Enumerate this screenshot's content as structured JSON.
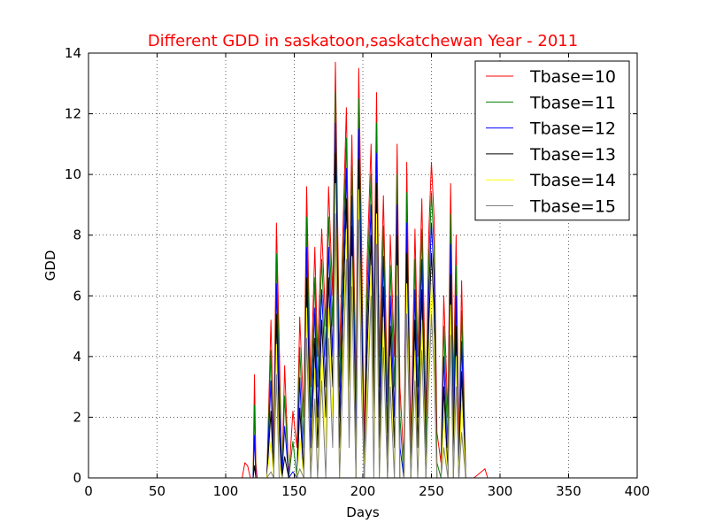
{
  "chart_data": {
    "type": "line",
    "title": "Different GDD in saskatoon,saskatchewan Year - 2011",
    "title_color": "#ff0000",
    "xlabel": "Days",
    "ylabel": "GDD",
    "xlim": [
      0,
      400
    ],
    "ylim": [
      0,
      14
    ],
    "xticks": [
      "0",
      "50",
      "100",
      "150",
      "200",
      "250",
      "300",
      "350",
      "400"
    ],
    "yticks": [
      "0",
      "2",
      "4",
      "6",
      "8",
      "10",
      "12",
      "14"
    ],
    "grid": true,
    "legend_position": "top-right",
    "base_series": {
      "x": [
        1,
        112,
        114,
        116,
        118,
        120,
        121,
        122,
        123,
        126,
        130,
        133,
        135,
        137,
        139,
        141,
        143,
        146,
        149,
        152,
        154,
        157,
        159,
        162,
        165,
        167,
        170,
        173,
        175,
        178,
        180,
        183,
        186,
        188,
        190,
        192,
        195,
        197,
        199,
        201,
        203,
        206,
        208,
        210,
        212,
        215,
        218,
        220,
        223,
        225,
        227,
        230,
        232,
        235,
        238,
        240,
        243,
        246,
        248,
        250,
        252,
        254,
        257,
        259,
        262,
        264,
        266,
        268,
        270,
        272,
        275,
        277,
        279,
        281,
        289,
        291,
        293,
        365
      ],
      "y": [
        0,
        0,
        0.5,
        0.4,
        0,
        0,
        3.4,
        0.5,
        0,
        0,
        0,
        5.2,
        1.0,
        8.4,
        4.5,
        0,
        3.7,
        0,
        2.2,
        1.0,
        5.3,
        2.0,
        9.6,
        3.0,
        7.6,
        4.0,
        8.2,
        5.0,
        9.6,
        6.0,
        13.7,
        4.0,
        9.0,
        12.2,
        6.0,
        11.3,
        3.0,
        13.5,
        8.0,
        1.0,
        7.0,
        11.0,
        5.0,
        12.7,
        4.0,
        9.3,
        2.5,
        8.0,
        4.0,
        11.0,
        3.0,
        0.5,
        10.4,
        1.0,
        8.2,
        4.0,
        9.2,
        2.0,
        8.0,
        10.4,
        8.5,
        1.5,
        0.5,
        6.0,
        2.0,
        9.7,
        3.0,
        8.0,
        1.0,
        6.5,
        0,
        0,
        0,
        0,
        0.3,
        0,
        0,
        0
      ]
    },
    "series": [
      {
        "name": "Tbase=10",
        "color": "#ff0000",
        "offset": 0
      },
      {
        "name": "Tbase=11",
        "color": "#008000",
        "offset": 1
      },
      {
        "name": "Tbase=12",
        "color": "#0000ff",
        "offset": 2
      },
      {
        "name": "Tbase=13",
        "color": "#000000",
        "offset": 3
      },
      {
        "name": "Tbase=14",
        "color": "#ffff00",
        "offset": 4
      },
      {
        "name": "Tbase=15",
        "color": "#808080",
        "offset": 5
      }
    ]
  }
}
